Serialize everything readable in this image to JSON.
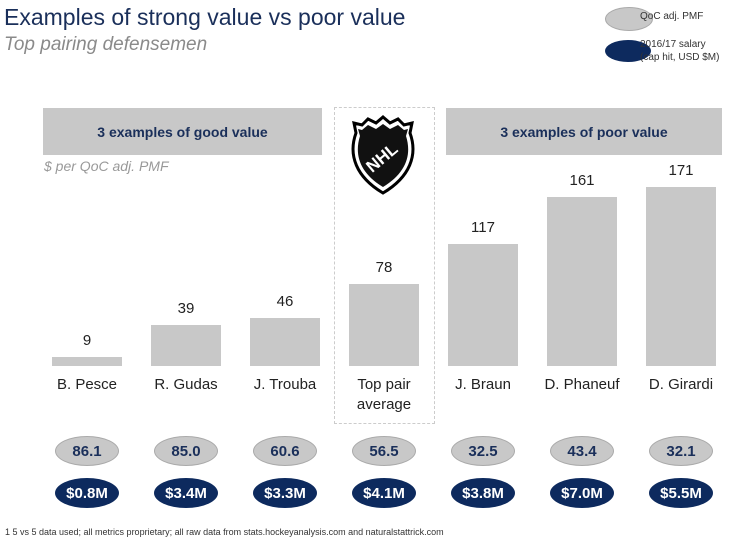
{
  "title": "Examples of strong value vs poor value",
  "subtitle": "Top pairing defensemen",
  "legend": [
    {
      "label": "QoC adj. PMF",
      "color": "#c8c8c8"
    },
    {
      "label": "2016/17 salary\n(cap hit, USD $M)",
      "color": "#0d2a5e"
    }
  ],
  "headers": {
    "good": "3 examples of good value",
    "poor": "3 examples of poor value"
  },
  "logo_text": "NHL",
  "chart_data": {
    "type": "bar",
    "ylabel": "$ per QoC adj. PMF",
    "categories": [
      "B. Pesce",
      "R. Gudas",
      "J. Trouba",
      "Top pair average",
      "J. Braun",
      "D. Phaneuf",
      "D. Girardi"
    ],
    "values": [
      9,
      39,
      46,
      78,
      117,
      161,
      171
    ],
    "qoc_adj_pmf": [
      "86.1",
      "85.0",
      "60.6",
      "56.5",
      "32.5",
      "43.4",
      "32.1"
    ],
    "salary": [
      "$0.8M",
      "$3.4M",
      "$3.3M",
      "$4.1M",
      "$3.8M",
      "$7.0M",
      "$5.5M"
    ],
    "bar_color": "#c8c8c8"
  },
  "footnote": "1 5 vs 5 data used; all metrics proprietary; all raw data from stats.hockeyanalysis.com and naturalstattrick.com"
}
